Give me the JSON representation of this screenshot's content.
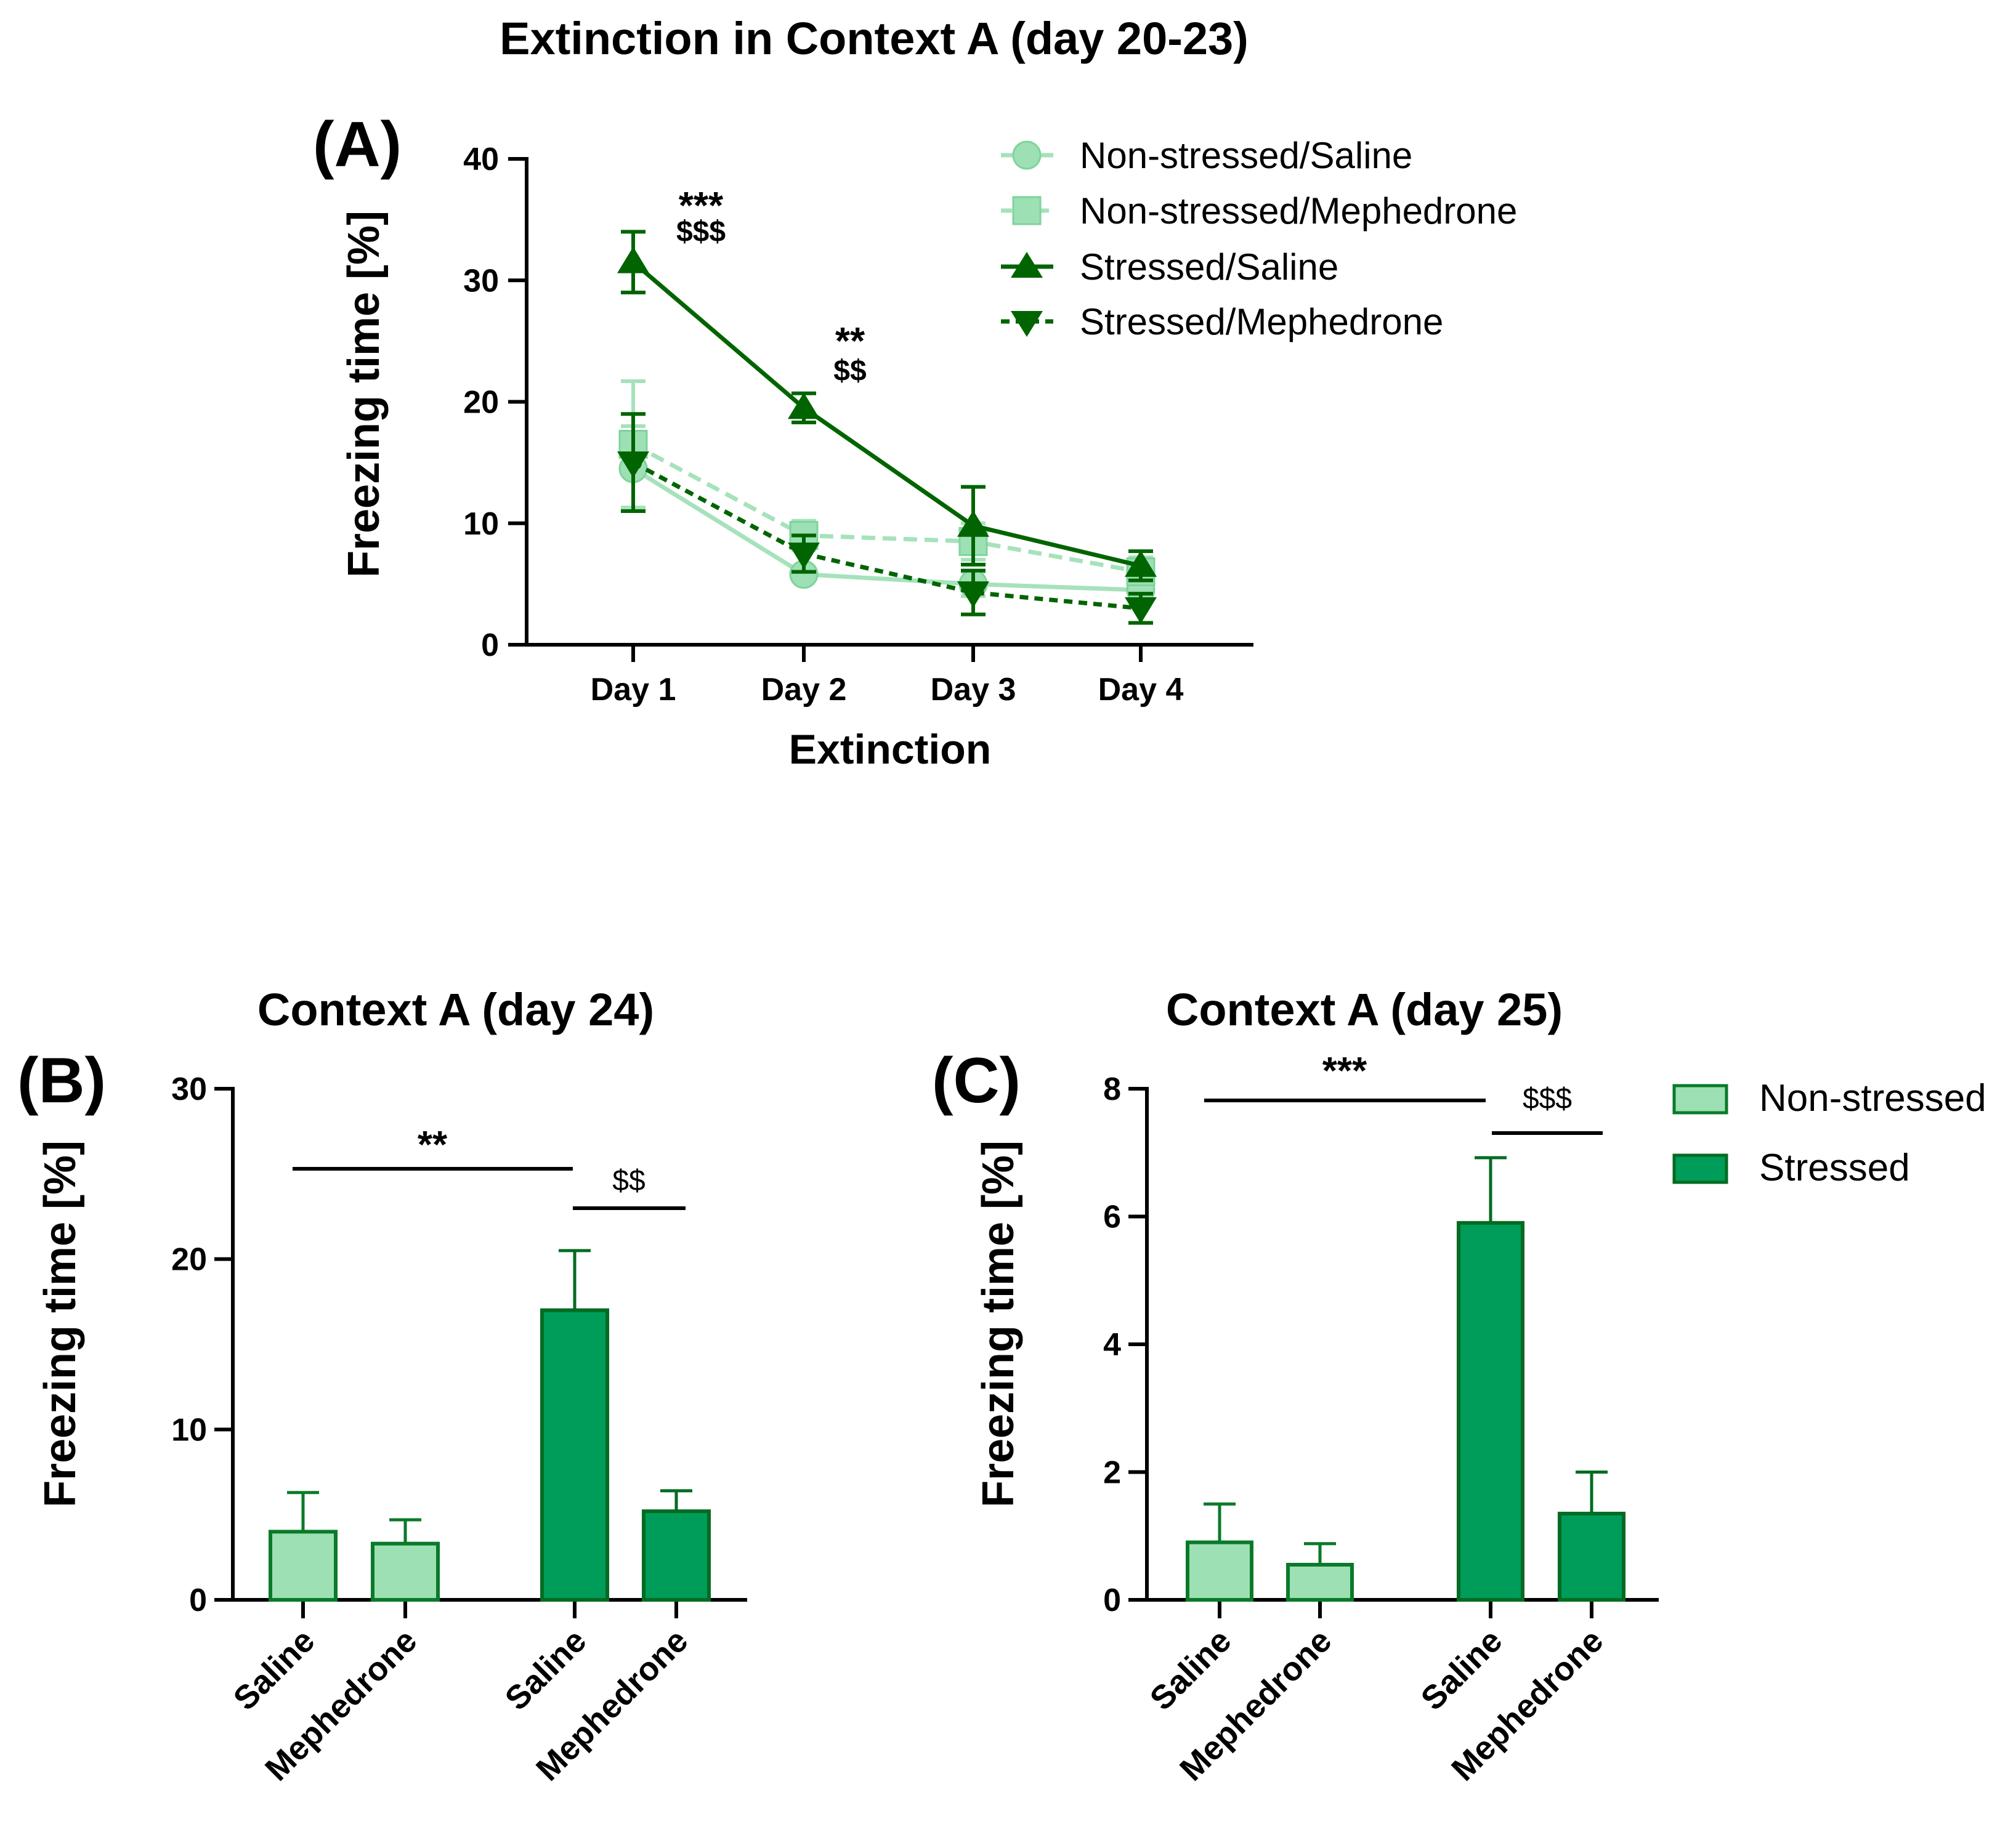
{
  "colors": {
    "light": "#9de0b4",
    "light_line": "#a6e2bb",
    "dark": "#006400",
    "bar_light_fill": "#9de0b4",
    "bar_light_stroke": "#0a7a2a",
    "bar_dark_fill": "#009c5a",
    "bar_dark_stroke": "#046b22"
  },
  "chart_data": [
    {
      "id": "A",
      "type": "line",
      "panel_label": "(A)",
      "title": "Extinction in Context A (day 20-23)",
      "xlabel": "Extinction",
      "ylabel": "Freezing time [%]",
      "categories": [
        "Day 1",
        "Day 2",
        "Day 3",
        "Day 4"
      ],
      "ylim": [
        0,
        40
      ],
      "yticks": [
        0,
        10,
        20,
        30,
        40
      ],
      "series": [
        {
          "name": "Non-stressed/Saline",
          "values": [
            14.5,
            5.8,
            5.0,
            4.5
          ],
          "errors": [
            3.5,
            0.5,
            1.0,
            0.8
          ],
          "marker": "circle",
          "dashed": false,
          "color": "#a6e2bb"
        },
        {
          "name": "Non-stressed/Mephedrone",
          "values": [
            16.5,
            9.0,
            8.5,
            6.0
          ],
          "errors": [
            5.2,
            1.2,
            1.5,
            1.2
          ],
          "marker": "square",
          "dashed": true,
          "color": "#a6e2bb"
        },
        {
          "name": "Stressed/Saline",
          "values": [
            31.5,
            19.5,
            9.8,
            6.5
          ],
          "errors": [
            2.5,
            1.2,
            3.2,
            1.2
          ],
          "marker": "triangle-up",
          "dashed": false,
          "color": "#006400"
        },
        {
          "name": "Stressed/Mephedrone",
          "values": [
            15.0,
            7.5,
            4.3,
            3.0
          ],
          "errors": [
            4.0,
            1.5,
            1.8,
            1.2
          ],
          "marker": "triangle-down",
          "dashed": true,
          "color": "#006400"
        }
      ],
      "annotations": [
        {
          "category": "Day 1",
          "stars": "***",
          "dollars": "$$$"
        },
        {
          "category": "Day 2",
          "stars": "**",
          "dollars": "$$"
        }
      ]
    },
    {
      "id": "B",
      "type": "bar",
      "panel_label": "(B)",
      "title": "Context A (day 24)",
      "ylabel": "Freezing time [%]",
      "categories": [
        "Saline",
        "Mephedrone",
        "Saline",
        "Mephedrone"
      ],
      "groups": [
        "Non-stressed",
        "Non-stressed",
        "Stressed",
        "Stressed"
      ],
      "values": [
        4.0,
        3.3,
        17.0,
        5.2
      ],
      "errors": [
        2.3,
        1.4,
        3.5,
        1.2
      ],
      "ylim": [
        0,
        30
      ],
      "yticks": [
        0,
        10,
        20,
        30
      ],
      "sig_stars": "**",
      "sig_dollars": "$$"
    },
    {
      "id": "C",
      "type": "bar",
      "panel_label": "(C)",
      "title": "Context A (day 25)",
      "ylabel": "Freezing time [%]",
      "categories": [
        "Saline",
        "Mephedrone",
        "Saline",
        "Mephedrone"
      ],
      "groups": [
        "Non-stressed",
        "Non-stressed",
        "Stressed",
        "Stressed"
      ],
      "values": [
        0.9,
        0.55,
        5.9,
        1.35
      ],
      "errors": [
        0.6,
        0.33,
        1.02,
        0.65
      ],
      "ylim": [
        0,
        8
      ],
      "yticks": [
        0,
        2,
        4,
        6,
        8
      ],
      "sig_stars": "***",
      "sig_dollars": "$$$",
      "legend": [
        "Non-stressed",
        "Stressed"
      ]
    }
  ]
}
